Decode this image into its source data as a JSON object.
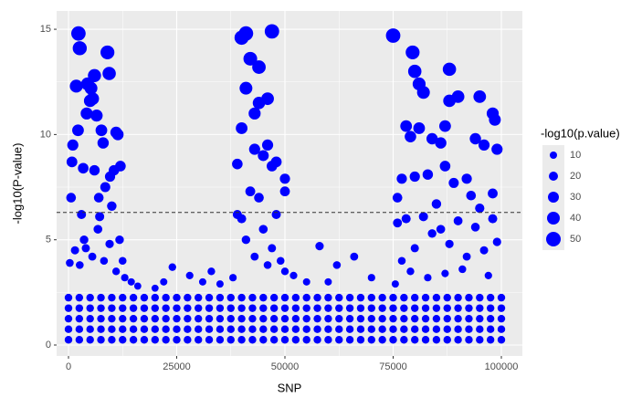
{
  "chart_data": {
    "type": "scatter",
    "x_label": "SNP",
    "y_label": "-log10(P-value)",
    "color": "#0000ff",
    "grid": true,
    "xlim": [
      -2743,
      104852
    ],
    "ylim": [
      -0.52,
      15.87
    ],
    "xticks": [
      0,
      25000,
      50000,
      75000,
      100000
    ],
    "yticks": [
      0,
      5,
      10,
      15
    ],
    "minor_xticks": [
      12500,
      37500,
      62500,
      87500
    ],
    "minor_yticks": [
      2.5,
      7.5,
      12.5
    ],
    "hline": 6.3,
    "legend": {
      "title": "-log10(p.value)",
      "sizes": [
        10,
        20,
        30,
        40,
        50
      ]
    },
    "x": [
      800,
      600,
      1000,
      1800,
      2300,
      2600,
      2200,
      3000,
      3400,
      4200,
      4400,
      5000,
      5200,
      5600,
      6000,
      6500,
      6000,
      7000,
      7600,
      8000,
      8500,
      9000,
      9400,
      9600,
      10000,
      10500,
      11000,
      11400,
      11800,
      12000,
      4000,
      6800,
      8200,
      2600,
      11000,
      13000,
      14500,
      16000,
      5500,
      9500,
      300,
      1500,
      12500,
      7200,
      3600,
      20000,
      24000,
      28000,
      31000,
      35000,
      22000,
      33000,
      39000,
      40000,
      41000,
      42000,
      44000,
      47000,
      40000,
      41000,
      43000,
      44000,
      46000,
      43000,
      45000,
      46000,
      47000,
      48000,
      50000,
      50000,
      42000,
      40000,
      44000,
      39000,
      41000,
      45000,
      48000,
      47000,
      49000,
      43000,
      46000,
      50000,
      38000,
      52000,
      55000,
      58000,
      62000,
      66000,
      70000,
      60000,
      75000,
      79500,
      80000,
      81000,
      82000,
      78000,
      81000,
      79000,
      84000,
      86000,
      87000,
      88000,
      88000,
      90000,
      94000,
      95000,
      96000,
      98000,
      98500,
      99000,
      76000,
      77000,
      80000,
      83000,
      85000,
      87000,
      89000,
      92000,
      93000,
      95000,
      98000,
      76000,
      78000,
      80000,
      82000,
      84000,
      86000,
      88000,
      90000,
      92000,
      94000,
      96000,
      98000,
      99000,
      77000,
      79000,
      83000,
      87000,
      91000,
      97000,
      75500,
      0,
      2500,
      5000,
      7500,
      10000,
      12500,
      15000,
      17500,
      20000,
      22500,
      25000,
      27500,
      30000,
      32500,
      35000,
      37500,
      40000,
      42500,
      45000,
      47500,
      50000,
      52500,
      55000,
      57500,
      60000,
      62500,
      65000,
      67500,
      70000,
      72500,
      75000,
      77500,
      80000,
      82500,
      85000,
      87500,
      90000,
      92500,
      95000,
      97500,
      100000,
      0,
      2500,
      5000,
      7500,
      10000,
      12500,
      15000,
      17500,
      20000,
      22500,
      25000,
      27500,
      30000,
      32500,
      35000,
      37500,
      40000,
      42500,
      45000,
      47500,
      50000,
      52500,
      55000,
      57500,
      60000,
      62500,
      65000,
      67500,
      70000,
      72500,
      75000,
      77500,
      80000,
      82500,
      85000,
      87500,
      90000,
      92500,
      95000,
      97500,
      100000,
      0,
      2500,
      5000,
      7500,
      10000,
      12500,
      15000,
      17500,
      20000,
      22500,
      25000,
      27500,
      30000,
      32500,
      35000,
      37500,
      40000,
      42500,
      45000,
      47500,
      50000,
      52500,
      55000,
      57500,
      60000,
      62500,
      65000,
      67500,
      70000,
      72500,
      75000,
      77500,
      80000,
      82500,
      85000,
      87500,
      90000,
      92500,
      95000,
      97500,
      100000,
      0,
      2500,
      5000,
      7500,
      10000,
      12500,
      15000,
      17500,
      20000,
      22500,
      25000,
      27500,
      30000,
      32500,
      35000,
      37500,
      40000,
      42500,
      45000,
      47500,
      50000,
      52500,
      55000,
      57500,
      60000,
      62500,
      65000,
      67500,
      70000,
      72500,
      75000,
      77500,
      80000,
      82500,
      85000,
      87500,
      90000,
      92500,
      95000,
      97500,
      100000,
      0,
      2500,
      5000,
      7500,
      10000,
      12500,
      15000,
      17500,
      20000,
      22500,
      25000,
      27500,
      30000,
      32500,
      35000,
      37500,
      40000,
      42500,
      45000,
      47500,
      50000,
      52500,
      55000,
      57500,
      60000,
      62500,
      65000,
      67500,
      70000,
      72500,
      75000,
      77500,
      80000,
      82500,
      85000,
      87500,
      90000,
      92500,
      95000,
      97500,
      100000
    ],
    "values": [
      8.7,
      7.0,
      9.5,
      12.3,
      14.8,
      14.1,
      10.2,
      6.2,
      8.4,
      11.0,
      12.4,
      11.6,
      12.2,
      11.7,
      12.8,
      10.9,
      8.3,
      7.0,
      10.2,
      9.6,
      7.5,
      13.9,
      12.9,
      8.0,
      6.6,
      8.3,
      10.1,
      10.0,
      5.0,
      8.5,
      4.6,
      5.5,
      4.0,
      3.8,
      3.5,
      3.2,
      3.0,
      2.8,
      4.2,
      4.8,
      3.9,
      4.5,
      4.0,
      6.1,
      5.0,
      2.7,
      3.7,
      3.3,
      3.0,
      2.9,
      3.0,
      3.5,
      8.6,
      14.6,
      14.8,
      13.6,
      13.2,
      14.9,
      10.3,
      12.2,
      11.0,
      11.5,
      11.7,
      9.3,
      9.0,
      9.5,
      8.5,
      8.7,
      7.9,
      7.3,
      7.3,
      6.0,
      7.0,
      6.2,
      5.0,
      5.5,
      6.2,
      4.6,
      4.0,
      4.2,
      3.8,
      3.5,
      3.2,
      3.3,
      3.0,
      4.7,
      3.8,
      4.2,
      3.2,
      3.0,
      14.7,
      13.9,
      13.0,
      12.4,
      12.0,
      10.4,
      10.3,
      9.9,
      9.8,
      9.6,
      10.4,
      13.1,
      11.6,
      11.8,
      9.8,
      11.8,
      9.5,
      11.0,
      10.7,
      9.3,
      7.0,
      7.9,
      8.0,
      8.1,
      6.7,
      8.5,
      7.7,
      7.9,
      7.1,
      6.5,
      7.2,
      5.8,
      6.0,
      4.6,
      6.1,
      5.3,
      5.5,
      4.8,
      5.9,
      4.2,
      5.6,
      4.5,
      6.0,
      4.9,
      4.0,
      3.5,
      3.2,
      3.4,
      3.6,
      3.3,
      2.9,
      0.25,
      0.25,
      0.25,
      0.25,
      0.25,
      0.25,
      0.25,
      0.25,
      0.25,
      0.25,
      0.25,
      0.25,
      0.25,
      0.25,
      0.25,
      0.25,
      0.25,
      0.25,
      0.25,
      0.25,
      0.25,
      0.25,
      0.25,
      0.25,
      0.25,
      0.25,
      0.25,
      0.25,
      0.25,
      0.25,
      0.25,
      0.25,
      0.25,
      0.25,
      0.25,
      0.25,
      0.25,
      0.25,
      0.25,
      0.25,
      0.25,
      0.75,
      0.75,
      0.75,
      0.75,
      0.75,
      0.75,
      0.75,
      0.75,
      0.75,
      0.75,
      0.75,
      0.75,
      0.75,
      0.75,
      0.75,
      0.75,
      0.75,
      0.75,
      0.75,
      0.75,
      0.75,
      0.75,
      0.75,
      0.75,
      0.75,
      0.75,
      0.75,
      0.75,
      0.75,
      0.75,
      0.75,
      0.75,
      0.75,
      0.75,
      0.75,
      0.75,
      0.75,
      0.75,
      0.75,
      0.75,
      0.75,
      1.25,
      1.25,
      1.25,
      1.25,
      1.25,
      1.25,
      1.25,
      1.25,
      1.25,
      1.25,
      1.25,
      1.25,
      1.25,
      1.25,
      1.25,
      1.25,
      1.25,
      1.25,
      1.25,
      1.25,
      1.25,
      1.25,
      1.25,
      1.25,
      1.25,
      1.25,
      1.25,
      1.25,
      1.25,
      1.25,
      1.25,
      1.25,
      1.25,
      1.25,
      1.25,
      1.25,
      1.25,
      1.25,
      1.25,
      1.25,
      1.25,
      1.75,
      1.75,
      1.75,
      1.75,
      1.75,
      1.75,
      1.75,
      1.75,
      1.75,
      1.75,
      1.75,
      1.75,
      1.75,
      1.75,
      1.75,
      1.75,
      1.75,
      1.75,
      1.75,
      1.75,
      1.75,
      1.75,
      1.75,
      1.75,
      1.75,
      1.75,
      1.75,
      1.75,
      1.75,
      1.75,
      1.75,
      1.75,
      1.75,
      1.75,
      1.75,
      1.75,
      1.75,
      1.75,
      1.75,
      1.75,
      1.75,
      2.25,
      2.25,
      2.25,
      2.25,
      2.25,
      2.25,
      2.25,
      2.25,
      2.25,
      2.25,
      2.25,
      2.25,
      2.25,
      2.25,
      2.25,
      2.25,
      2.25,
      2.25,
      2.25,
      2.25,
      2.25,
      2.25,
      2.25,
      2.25,
      2.25,
      2.25,
      2.25,
      2.25,
      2.25,
      2.25,
      2.25,
      2.25,
      2.25,
      2.25,
      2.25,
      2.25,
      2.25,
      2.25,
      2.25,
      2.25,
      2.25
    ],
    "sizes": [
      29,
      23,
      31,
      41,
      49,
      47,
      34,
      20,
      28,
      36,
      41,
      38,
      40,
      39,
      42,
      36,
      27,
      23,
      34,
      32,
      25,
      46,
      43,
      26,
      22,
      27,
      33,
      33,
      17,
      28,
      15,
      18,
      13,
      13,
      12,
      11,
      10,
      9,
      14,
      16,
      13,
      15,
      13,
      20,
      17,
      9,
      12,
      11,
      10,
      10,
      10,
      12,
      28,
      48,
      49,
      45,
      44,
      49,
      34,
      40,
      36,
      38,
      39,
      31,
      30,
      31,
      28,
      29,
      26,
      24,
      24,
      20,
      23,
      20,
      17,
      18,
      20,
      15,
      13,
      14,
      13,
      12,
      11,
      11,
      10,
      16,
      13,
      14,
      11,
      10,
      49,
      46,
      43,
      41,
      40,
      34,
      34,
      33,
      32,
      32,
      34,
      43,
      38,
      39,
      32,
      39,
      31,
      36,
      35,
      31,
      23,
      26,
      26,
      27,
      22,
      28,
      25,
      26,
      23,
      21,
      24,
      19,
      20,
      15,
      20,
      17,
      18,
      16,
      19,
      14,
      18,
      15,
      20,
      16,
      13,
      12,
      11,
      11,
      12,
      11,
      10,
      12,
      12,
      12,
      12,
      12,
      12,
      12,
      12,
      12,
      12,
      12,
      12,
      12,
      12,
      12,
      12,
      12,
      12,
      12,
      12,
      12,
      12,
      12,
      12,
      12,
      12,
      12,
      12,
      12,
      12,
      12,
      12,
      12,
      12,
      12,
      12,
      12,
      12,
      12,
      12,
      12,
      12,
      12,
      12,
      12,
      12,
      12,
      12,
      12,
      12,
      12,
      12,
      12,
      12,
      12,
      12,
      12,
      12,
      12,
      12,
      12,
      12,
      12,
      12,
      12,
      12,
      12,
      12,
      12,
      12,
      12,
      12,
      12,
      12,
      12,
      12,
      12,
      12,
      12,
      12,
      12,
      12,
      12,
      12,
      12,
      12,
      12,
      12,
      12,
      12,
      12,
      12,
      12,
      12,
      12,
      12,
      12,
      12,
      12,
      12,
      12,
      12,
      12,
      12,
      12,
      12,
      12,
      12,
      12,
      12,
      12,
      12,
      12,
      12,
      12,
      12,
      12,
      12,
      12,
      12,
      12,
      12,
      12,
      12,
      12,
      12,
      12,
      12,
      12,
      12,
      12,
      12,
      12,
      12,
      12,
      12,
      12,
      12,
      12,
      12,
      12,
      12,
      12,
      12,
      12,
      12,
      12,
      12,
      12,
      12,
      12,
      12,
      12,
      12,
      12,
      12,
      12,
      12,
      12,
      12,
      12,
      12,
      12,
      12,
      12,
      12,
      12,
      12,
      12,
      12,
      12,
      12,
      12,
      12,
      12,
      12,
      12,
      12,
      12,
      12,
      12,
      12,
      12,
      12,
      12,
      12,
      12,
      12,
      12,
      12,
      12,
      12,
      12,
      12,
      12,
      12,
      12,
      12,
      12,
      12,
      12,
      12,
      12,
      12,
      12
    ]
  }
}
